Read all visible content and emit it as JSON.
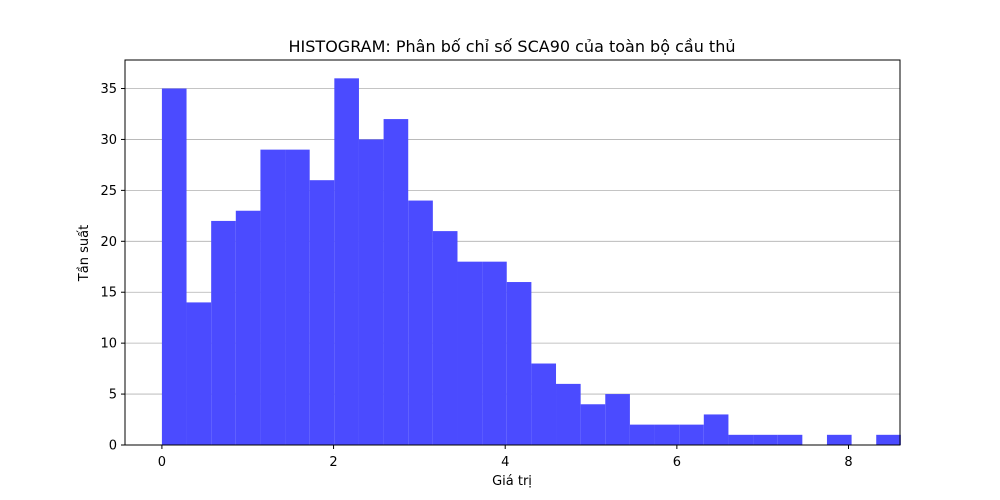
{
  "chart_data": {
    "type": "bar",
    "title": "HISTOGRAM: Phân bố chỉ số SCA90 của toàn bộ cầu thủ",
    "xlabel": "Giá trị",
    "ylabel": "Tần suất",
    "xlim": [
      -0.43,
      8.6
    ],
    "ylim": [
      0,
      37.8
    ],
    "bin_start": 0.0,
    "bin_width": 0.287,
    "values": [
      35,
      14,
      22,
      23,
      29,
      29,
      26,
      36,
      30,
      32,
      24,
      21,
      18,
      18,
      16,
      8,
      6,
      4,
      5,
      2,
      2,
      2,
      3,
      1,
      1,
      1,
      0,
      1,
      0,
      1
    ],
    "xticks": [
      0,
      2,
      4,
      6,
      8
    ],
    "yticks": [
      0,
      5,
      10,
      15,
      20,
      25,
      30,
      35
    ],
    "bar_color": "#4b4bff",
    "grid": "y-axis",
    "legend": "none"
  }
}
